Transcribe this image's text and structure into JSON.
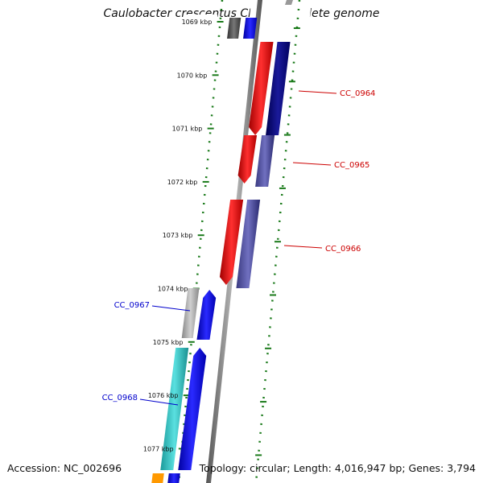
{
  "title": "Caulobacter crescentus CB15, complete genome",
  "footer": {
    "accession": "Accession: NC_002696",
    "topology": "Topology: circular; Length: 4,016,947 bp; Genes: 3,794"
  },
  "scale_labels": [
    "1069 kbp",
    "1070 kbp",
    "1071 kbp",
    "1072 kbp",
    "1073 kbp",
    "1074 kbp",
    "1075 kbp",
    "1076 kbp",
    "1077 kbp"
  ],
  "genes": [
    {
      "label": "CC_0964",
      "color": "#cc0000"
    },
    {
      "label": "CC_0965",
      "color": "#cc0000"
    },
    {
      "label": "CC_0966",
      "color": "#cc0000"
    },
    {
      "label": "CC_0967",
      "color": "#0000cc"
    },
    {
      "label": "CC_0968",
      "color": "#0000cc"
    }
  ],
  "colors": {
    "scale_dots": "#1a7a1a",
    "backbone": "#808080",
    "gene_red": "#ff0000",
    "gene_navy": "#0a0a80",
    "gene_blue": "#0000ff",
    "gene_cyan": "#33cccc",
    "gene_gray": "#aaaaaa",
    "gene_orange": "#ff9900"
  }
}
